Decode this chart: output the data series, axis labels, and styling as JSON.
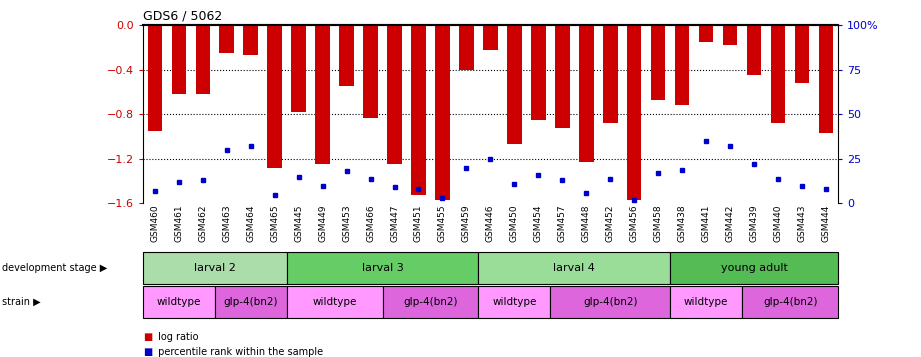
{
  "title": "GDS6 / 5062",
  "samples": [
    "GSM460",
    "GSM461",
    "GSM462",
    "GSM463",
    "GSM464",
    "GSM465",
    "GSM445",
    "GSM449",
    "GSM453",
    "GSM466",
    "GSM447",
    "GSM451",
    "GSM455",
    "GSM459",
    "GSM446",
    "GSM450",
    "GSM454",
    "GSM457",
    "GSM448",
    "GSM452",
    "GSM456",
    "GSM458",
    "GSM438",
    "GSM441",
    "GSM442",
    "GSM439",
    "GSM440",
    "GSM443",
    "GSM444"
  ],
  "log_ratio": [
    -0.95,
    -0.62,
    -0.62,
    -0.25,
    -0.27,
    -1.28,
    -0.78,
    -1.25,
    -0.55,
    -0.83,
    -1.25,
    -1.52,
    -1.57,
    -0.4,
    -0.22,
    -1.07,
    -0.85,
    -0.92,
    -1.23,
    -0.88,
    -1.57,
    -0.67,
    -0.72,
    -0.15,
    -0.18,
    -0.45,
    -0.88,
    -0.52,
    -0.97
  ],
  "percentile": [
    7,
    12,
    13,
    30,
    32,
    5,
    15,
    10,
    18,
    14,
    9,
    8,
    3,
    20,
    25,
    11,
    16,
    13,
    6,
    14,
    2,
    17,
    19,
    35,
    32,
    22,
    14,
    10,
    8
  ],
  "ylim_left": [
    -1.6,
    0
  ],
  "ylim_right": [
    0,
    100
  ],
  "yticks_left": [
    -1.6,
    -1.2,
    -0.8,
    -0.4,
    0
  ],
  "yticks_right": [
    0,
    25,
    50,
    75,
    100
  ],
  "development_stages": [
    {
      "label": "larval 2",
      "start": 0,
      "end": 6,
      "color": "#aaddaa"
    },
    {
      "label": "larval 3",
      "start": 6,
      "end": 14,
      "color": "#66cc66"
    },
    {
      "label": "larval 4",
      "start": 14,
      "end": 22,
      "color": "#99dd99"
    },
    {
      "label": "young adult",
      "start": 22,
      "end": 29,
      "color": "#55bb55"
    }
  ],
  "strains": [
    {
      "label": "wildtype",
      "start": 0,
      "end": 3,
      "color": "#ff99ff"
    },
    {
      "label": "glp-4(bn2)",
      "start": 3,
      "end": 6,
      "color": "#dd66dd"
    },
    {
      "label": "wildtype",
      "start": 6,
      "end": 10,
      "color": "#ff99ff"
    },
    {
      "label": "glp-4(bn2)",
      "start": 10,
      "end": 14,
      "color": "#dd66dd"
    },
    {
      "label": "wildtype",
      "start": 14,
      "end": 17,
      "color": "#ff99ff"
    },
    {
      "label": "glp-4(bn2)",
      "start": 17,
      "end": 22,
      "color": "#dd66dd"
    },
    {
      "label": "wildtype",
      "start": 22,
      "end": 25,
      "color": "#ff99ff"
    },
    {
      "label": "glp-4(bn2)",
      "start": 25,
      "end": 29,
      "color": "#dd66dd"
    }
  ],
  "bar_color": "#cc0000",
  "dot_color": "#0000cc",
  "background": "#ffffff"
}
